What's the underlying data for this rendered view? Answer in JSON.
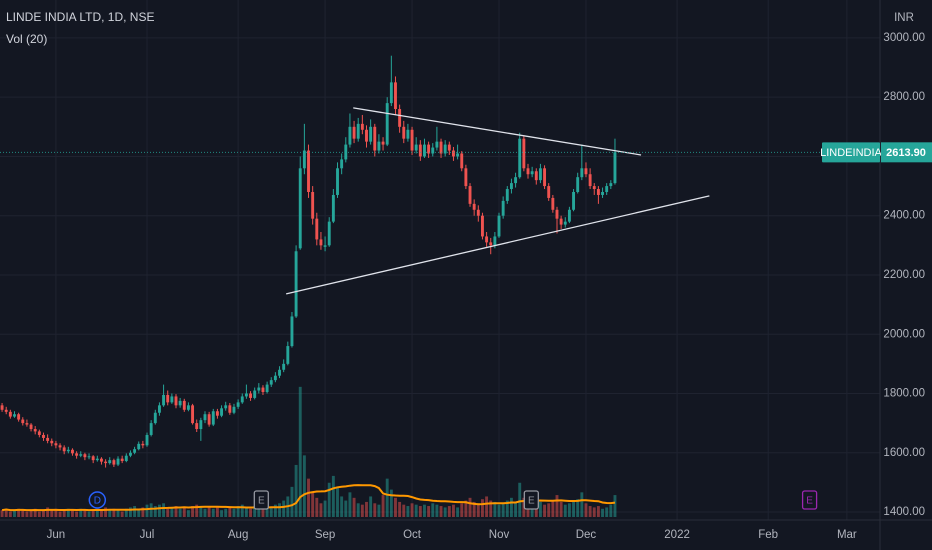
{
  "chart_data": {
    "type": "candlestick",
    "title": "LINDE INDIA LTD, 1D, NSE",
    "volume_ma": {
      "label": "Vol (20)",
      "period": 20
    },
    "currency": "INR",
    "symbol": "LINDEINDIA",
    "last_price": {
      "value": 2613.9,
      "label": "2613.90"
    },
    "up_color": "#26a69a",
    "down_color": "#ef5350",
    "ma_color": "#ff9800",
    "grid": true,
    "ylim": [
      1373,
      3128
    ],
    "yticks": [
      {
        "value": 1400,
        "label": "1400.00"
      },
      {
        "value": 1600,
        "label": "1600.00"
      },
      {
        "value": 1800,
        "label": "1800.00"
      },
      {
        "value": 2000,
        "label": "2000.00"
      },
      {
        "value": 2200,
        "label": "2200.00"
      },
      {
        "value": 2400,
        "label": "2400.00"
      },
      {
        "value": 2600,
        "label": "2600.00"
      },
      {
        "value": 2800,
        "label": "2800.00"
      },
      {
        "value": 3000,
        "label": "3000.00"
      }
    ],
    "xlim": [
      -0.5,
      212
    ],
    "xticks": [
      {
        "value": 13,
        "label": "Jun"
      },
      {
        "value": 35,
        "label": "Jul"
      },
      {
        "value": 57,
        "label": "Aug"
      },
      {
        "value": 78,
        "label": "Sep"
      },
      {
        "value": 99,
        "label": "Oct"
      },
      {
        "value": 120,
        "label": "Nov"
      },
      {
        "value": 141,
        "label": "Dec"
      },
      {
        "value": 163,
        "label": "2022"
      },
      {
        "value": 185,
        "label": "Feb"
      },
      {
        "value": 204,
        "label": "Mar"
      }
    ],
    "volume_ylim": [
      0,
      100
    ],
    "ohlc": [
      [
        1760,
        1768,
        1738,
        1745
      ],
      [
        1745,
        1755,
        1730,
        1738
      ],
      [
        1738,
        1745,
        1715,
        1722
      ],
      [
        1722,
        1740,
        1718,
        1730
      ],
      [
        1730,
        1735,
        1705,
        1712
      ],
      [
        1712,
        1720,
        1692,
        1700
      ],
      [
        1700,
        1712,
        1688,
        1695
      ],
      [
        1695,
        1700,
        1672,
        1680
      ],
      [
        1680,
        1690,
        1662,
        1672
      ],
      [
        1672,
        1678,
        1652,
        1660
      ],
      [
        1660,
        1668,
        1640,
        1650
      ],
      [
        1650,
        1662,
        1632,
        1640
      ],
      [
        1640,
        1648,
        1622,
        1632
      ],
      [
        1632,
        1640,
        1615,
        1625
      ],
      [
        1625,
        1632,
        1608,
        1618
      ],
      [
        1618,
        1625,
        1595,
        1605
      ],
      [
        1605,
        1620,
        1598,
        1610
      ],
      [
        1610,
        1615,
        1590,
        1598
      ],
      [
        1598,
        1605,
        1580,
        1590
      ],
      [
        1590,
        1605,
        1585,
        1595
      ],
      [
        1595,
        1600,
        1575,
        1585
      ],
      [
        1585,
        1598,
        1578,
        1588
      ],
      [
        1588,
        1592,
        1565,
        1575
      ],
      [
        1575,
        1590,
        1570,
        1580
      ],
      [
        1580,
        1585,
        1560,
        1570
      ],
      [
        1570,
        1578,
        1550,
        1565
      ],
      [
        1565,
        1585,
        1560,
        1575
      ],
      [
        1575,
        1580,
        1552,
        1560
      ],
      [
        1560,
        1588,
        1555,
        1580
      ],
      [
        1580,
        1590,
        1565,
        1572
      ],
      [
        1572,
        1598,
        1568,
        1590
      ],
      [
        1590,
        1608,
        1585,
        1600
      ],
      [
        1600,
        1620,
        1595,
        1612
      ],
      [
        1612,
        1638,
        1608,
        1630
      ],
      [
        1630,
        1640,
        1615,
        1625
      ],
      [
        1625,
        1668,
        1620,
        1660
      ],
      [
        1660,
        1710,
        1655,
        1700
      ],
      [
        1700,
        1745,
        1695,
        1735
      ],
      [
        1735,
        1770,
        1725,
        1760
      ],
      [
        1760,
        1830,
        1755,
        1795
      ],
      [
        1795,
        1810,
        1760,
        1770
      ],
      [
        1770,
        1800,
        1765,
        1790
      ],
      [
        1790,
        1798,
        1750,
        1760
      ],
      [
        1760,
        1785,
        1752,
        1775
      ],
      [
        1775,
        1782,
        1738,
        1745
      ],
      [
        1745,
        1770,
        1740,
        1760
      ],
      [
        1760,
        1765,
        1695,
        1700
      ],
      [
        1700,
        1712,
        1670,
        1680
      ],
      [
        1680,
        1718,
        1640,
        1710
      ],
      [
        1710,
        1740,
        1700,
        1730
      ],
      [
        1730,
        1738,
        1688,
        1695
      ],
      [
        1695,
        1748,
        1690,
        1740
      ],
      [
        1740,
        1748,
        1715,
        1725
      ],
      [
        1725,
        1760,
        1720,
        1750
      ],
      [
        1750,
        1772,
        1742,
        1760
      ],
      [
        1760,
        1768,
        1728,
        1735
      ],
      [
        1735,
        1765,
        1730,
        1755
      ],
      [
        1755,
        1780,
        1748,
        1770
      ],
      [
        1770,
        1800,
        1765,
        1790
      ],
      [
        1790,
        1830,
        1782,
        1800
      ],
      [
        1800,
        1808,
        1775,
        1785
      ],
      [
        1785,
        1820,
        1780,
        1810
      ],
      [
        1810,
        1835,
        1800,
        1820
      ],
      [
        1820,
        1828,
        1795,
        1805
      ],
      [
        1805,
        1840,
        1800,
        1830
      ],
      [
        1830,
        1855,
        1822,
        1845
      ],
      [
        1845,
        1872,
        1838,
        1860
      ],
      [
        1860,
        1892,
        1852,
        1880
      ],
      [
        1880,
        1915,
        1872,
        1900
      ],
      [
        1900,
        1975,
        1895,
        1960
      ],
      [
        1960,
        2075,
        1955,
        2060
      ],
      [
        2060,
        2300,
        2055,
        2280
      ],
      [
        2290,
        2600,
        2285,
        2560
      ],
      [
        2560,
        2710,
        2540,
        2620
      ],
      [
        2620,
        2640,
        2460,
        2480
      ],
      [
        2480,
        2500,
        2370,
        2390
      ],
      [
        2390,
        2410,
        2300,
        2320
      ],
      [
        2320,
        2345,
        2285,
        2300
      ],
      [
        2295,
        2330,
        2280,
        2300
      ],
      [
        2300,
        2395,
        2295,
        2380
      ],
      [
        2380,
        2490,
        2375,
        2470
      ],
      [
        2470,
        2580,
        2460,
        2560
      ],
      [
        2560,
        2610,
        2540,
        2590
      ],
      [
        2590,
        2665,
        2580,
        2640
      ],
      [
        2640,
        2745,
        2630,
        2700
      ],
      [
        2700,
        2720,
        2645,
        2660
      ],
      [
        2660,
        2730,
        2650,
        2710
      ],
      [
        2710,
        2740,
        2675,
        2690
      ],
      [
        2690,
        2705,
        2630,
        2650
      ],
      [
        2650,
        2725,
        2640,
        2700
      ],
      [
        2700,
        2710,
        2600,
        2620
      ],
      [
        2620,
        2675,
        2610,
        2650
      ],
      [
        2650,
        2665,
        2620,
        2640
      ],
      [
        2640,
        2800,
        2635,
        2780
      ],
      [
        2780,
        2940,
        2770,
        2850
      ],
      [
        2850,
        2870,
        2740,
        2760
      ],
      [
        2760,
        2775,
        2680,
        2700
      ],
      [
        2700,
        2720,
        2645,
        2660
      ],
      [
        2660,
        2710,
        2650,
        2690
      ],
      [
        2690,
        2700,
        2605,
        2620
      ],
      [
        2620,
        2665,
        2610,
        2640
      ],
      [
        2640,
        2655,
        2585,
        2600
      ],
      [
        2600,
        2660,
        2595,
        2640
      ],
      [
        2640,
        2650,
        2595,
        2610
      ],
      [
        2610,
        2645,
        2600,
        2630
      ],
      [
        2630,
        2700,
        2620,
        2650
      ],
      [
        2650,
        2660,
        2595,
        2610
      ],
      [
        2610,
        2655,
        2600,
        2640
      ],
      [
        2640,
        2650,
        2605,
        2620
      ],
      [
        2620,
        2632,
        2585,
        2600
      ],
      [
        2600,
        2640,
        2590,
        2610
      ],
      [
        2610,
        2618,
        2550,
        2560
      ],
      [
        2560,
        2572,
        2490,
        2500
      ],
      [
        2500,
        2510,
        2430,
        2440
      ],
      [
        2440,
        2455,
        2400,
        2420
      ],
      [
        2420,
        2435,
        2380,
        2400
      ],
      [
        2400,
        2410,
        2320,
        2330
      ],
      [
        2330,
        2345,
        2295,
        2310
      ],
      [
        2310,
        2325,
        2270,
        2300
      ],
      [
        2300,
        2345,
        2290,
        2330
      ],
      [
        2330,
        2410,
        2325,
        2400
      ],
      [
        2400,
        2465,
        2390,
        2450
      ],
      [
        2450,
        2500,
        2440,
        2490
      ],
      [
        2490,
        2525,
        2475,
        2510
      ],
      [
        2510,
        2545,
        2495,
        2530
      ],
      [
        2530,
        2680,
        2525,
        2660
      ],
      [
        2660,
        2670,
        2550,
        2560
      ],
      [
        2560,
        2575,
        2525,
        2540
      ],
      [
        2540,
        2565,
        2530,
        2550
      ],
      [
        2550,
        2560,
        2505,
        2520
      ],
      [
        2520,
        2575,
        2510,
        2560
      ],
      [
        2560,
        2570,
        2490,
        2500
      ],
      [
        2500,
        2510,
        2450,
        2460
      ],
      [
        2460,
        2470,
        2410,
        2420
      ],
      [
        2420,
        2430,
        2340,
        2390
      ],
      [
        2390,
        2400,
        2355,
        2370
      ],
      [
        2370,
        2395,
        2360,
        2380
      ],
      [
        2380,
        2430,
        2375,
        2420
      ],
      [
        2420,
        2490,
        2415,
        2480
      ],
      [
        2480,
        2545,
        2475,
        2530
      ],
      [
        2530,
        2640,
        2520,
        2560
      ],
      [
        2560,
        2580,
        2530,
        2540
      ],
      [
        2540,
        2560,
        2490,
        2500
      ],
      [
        2500,
        2510,
        2470,
        2490
      ],
      [
        2490,
        2500,
        2440,
        2470
      ],
      [
        2470,
        2495,
        2460,
        2480
      ],
      [
        2480,
        2510,
        2470,
        2500
      ],
      [
        2500,
        2520,
        2490,
        2510
      ],
      [
        2510,
        2660,
        2505,
        2613.9
      ]
    ],
    "volume": [
      5,
      6,
      4,
      5,
      6,
      5,
      4,
      5,
      6,
      4,
      5,
      7,
      5,
      6,
      4,
      5,
      6,
      5,
      4,
      6,
      5,
      4,
      5,
      6,
      5,
      7,
      5,
      6,
      5,
      4,
      6,
      7,
      8,
      6,
      7,
      9,
      10,
      8,
      9,
      10,
      6,
      7,
      8,
      6,
      7,
      5,
      8,
      9,
      7,
      6,
      7,
      6,
      8,
      5,
      6,
      7,
      6,
      8,
      9,
      7,
      6,
      8,
      7,
      6,
      8,
      7,
      9,
      10,
      12,
      15,
      22,
      38,
      95,
      45,
      28,
      18,
      14,
      10,
      12,
      25,
      30,
      22,
      15,
      12,
      18,
      14,
      10,
      9,
      11,
      15,
      10,
      9,
      16,
      28,
      20,
      14,
      11,
      9,
      8,
      10,
      9,
      8,
      9,
      8,
      10,
      9,
      8,
      7,
      8,
      9,
      7,
      10,
      12,
      14,
      11,
      10,
      13,
      15,
      12,
      11,
      9,
      10,
      12,
      14,
      11,
      25,
      14,
      10,
      9,
      8,
      11,
      9,
      10,
      12,
      16,
      11,
      9,
      10,
      12,
      13,
      18,
      10,
      8,
      7,
      8,
      6,
      7,
      9,
      16
    ],
    "trendlines": [
      {
        "x": [
          84.8,
          154.3
        ],
        "y": [
          2764,
          2605
        ]
      },
      {
        "x": [
          68.6,
          170.8
        ],
        "y": [
          2136,
          2467
        ]
      }
    ],
    "events": [
      {
        "label": "D",
        "x": 23,
        "color": "#2962ff"
      },
      {
        "label": "E",
        "x": 62.6,
        "color": "#9598a1"
      },
      {
        "label": "E",
        "x": 127.8,
        "color": "#9598a1"
      },
      {
        "label": "E",
        "x": 195,
        "color": "#9c27b0"
      }
    ]
  }
}
